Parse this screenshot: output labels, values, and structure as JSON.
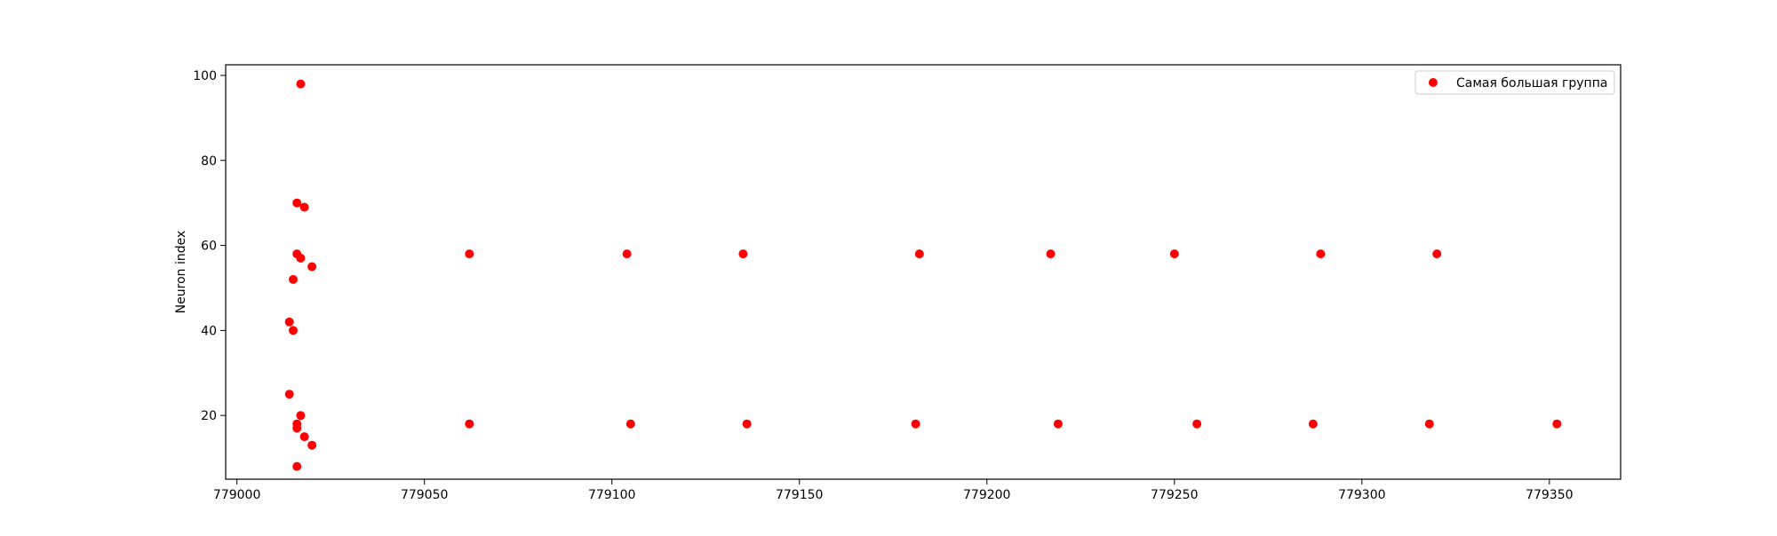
{
  "chart_data": {
    "type": "scatter",
    "title": "",
    "xlabel": "",
    "ylabel": "Neuron index",
    "xlim": [
      778997,
      779369
    ],
    "ylim": [
      5,
      102.5
    ],
    "xticks": [
      779000,
      779050,
      779100,
      779150,
      779200,
      779250,
      779300,
      779350
    ],
    "yticks": [
      20,
      40,
      60,
      80,
      100
    ],
    "grid": false,
    "legend_position": "top-right",
    "series": [
      {
        "name": "Самая большая группа",
        "color": "#ff0000",
        "points": [
          {
            "x": 779017,
            "y": 98
          },
          {
            "x": 779016,
            "y": 70
          },
          {
            "x": 779018,
            "y": 69
          },
          {
            "x": 779016,
            "y": 58
          },
          {
            "x": 779017,
            "y": 57
          },
          {
            "x": 779020,
            "y": 55
          },
          {
            "x": 779015,
            "y": 52
          },
          {
            "x": 779014,
            "y": 42
          },
          {
            "x": 779015,
            "y": 40
          },
          {
            "x": 779014,
            "y": 25
          },
          {
            "x": 779017,
            "y": 20
          },
          {
            "x": 779016,
            "y": 18
          },
          {
            "x": 779016,
            "y": 17
          },
          {
            "x": 779018,
            "y": 15
          },
          {
            "x": 779020,
            "y": 13
          },
          {
            "x": 779016,
            "y": 8
          },
          {
            "x": 779062,
            "y": 58
          },
          {
            "x": 779104,
            "y": 58
          },
          {
            "x": 779135,
            "y": 58
          },
          {
            "x": 779182,
            "y": 58
          },
          {
            "x": 779217,
            "y": 58
          },
          {
            "x": 779250,
            "y": 58
          },
          {
            "x": 779289,
            "y": 58
          },
          {
            "x": 779320,
            "y": 58
          },
          {
            "x": 779062,
            "y": 18
          },
          {
            "x": 779105,
            "y": 18
          },
          {
            "x": 779136,
            "y": 18
          },
          {
            "x": 779181,
            "y": 18
          },
          {
            "x": 779219,
            "y": 18
          },
          {
            "x": 779256,
            "y": 18
          },
          {
            "x": 779287,
            "y": 18
          },
          {
            "x": 779318,
            "y": 18
          },
          {
            "x": 779352,
            "y": 18
          }
        ]
      }
    ]
  }
}
